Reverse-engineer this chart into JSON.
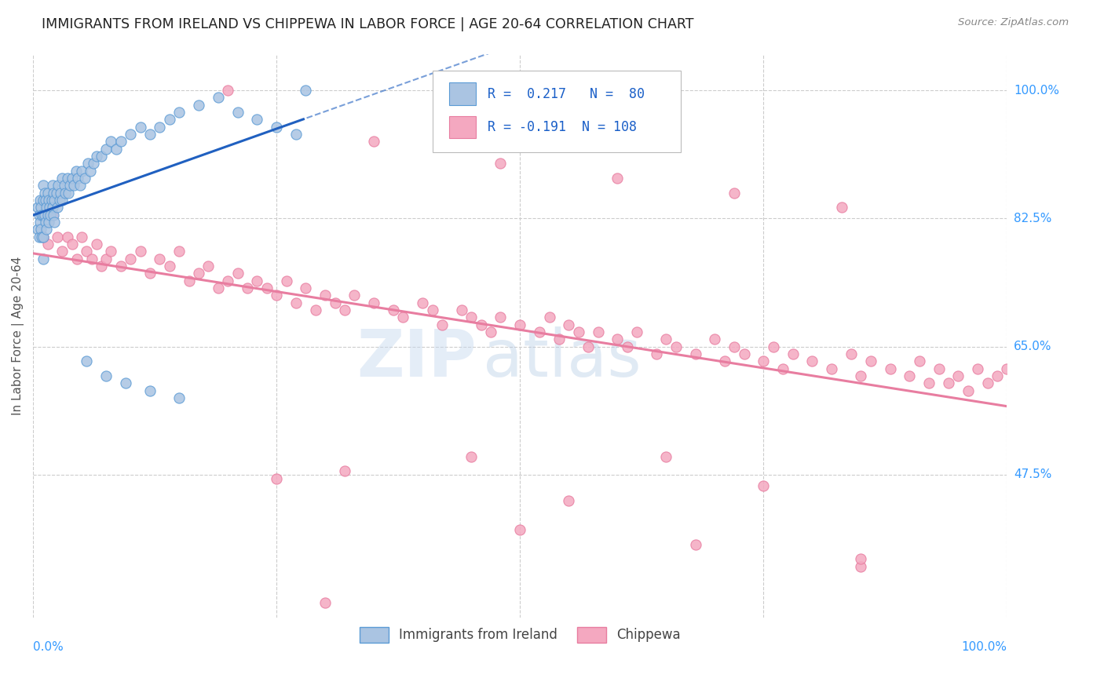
{
  "title": "IMMIGRANTS FROM IRELAND VS CHIPPEWA IN LABOR FORCE | AGE 20-64 CORRELATION CHART",
  "source": "Source: ZipAtlas.com",
  "ylabel": "In Labor Force | Age 20-64",
  "y_tick_labels": [
    "100.0%",
    "82.5%",
    "65.0%",
    "47.5%"
  ],
  "y_tick_positions": [
    1.0,
    0.825,
    0.65,
    0.475
  ],
  "x_lim": [
    0.0,
    1.0
  ],
  "y_lim": [
    0.28,
    1.05
  ],
  "ireland_color": "#aac4e2",
  "ireland_edge_color": "#5b9bd5",
  "chippewa_color": "#f4a8c0",
  "chippewa_edge_color": "#e87da0",
  "ireland_line_color": "#2060c0",
  "chippewa_line_color": "#e87da0",
  "ireland_R": 0.217,
  "ireland_N": 80,
  "chippewa_R": -0.191,
  "chippewa_N": 108,
  "background_color": "#ffffff",
  "grid_color": "#cccccc",
  "ireland_scatter_x": [
    0.005,
    0.005,
    0.006,
    0.006,
    0.007,
    0.007,
    0.008,
    0.008,
    0.009,
    0.009,
    0.01,
    0.01,
    0.01,
    0.01,
    0.01,
    0.012,
    0.012,
    0.013,
    0.013,
    0.014,
    0.014,
    0.015,
    0.015,
    0.016,
    0.016,
    0.017,
    0.018,
    0.019,
    0.02,
    0.02,
    0.021,
    0.021,
    0.022,
    0.022,
    0.024,
    0.025,
    0.026,
    0.027,
    0.028,
    0.03,
    0.03,
    0.032,
    0.033,
    0.035,
    0.036,
    0.038,
    0.04,
    0.042,
    0.044,
    0.046,
    0.048,
    0.05,
    0.053,
    0.056,
    0.059,
    0.062,
    0.065,
    0.07,
    0.075,
    0.08,
    0.085,
    0.09,
    0.1,
    0.11,
    0.12,
    0.13,
    0.14,
    0.15,
    0.17,
    0.19,
    0.21,
    0.23,
    0.25,
    0.27,
    0.055,
    0.075,
    0.095,
    0.12,
    0.15,
    0.28
  ],
  "ireland_scatter_y": [
    0.84,
    0.81,
    0.83,
    0.8,
    0.85,
    0.82,
    0.84,
    0.81,
    0.83,
    0.8,
    0.87,
    0.85,
    0.83,
    0.8,
    0.77,
    0.86,
    0.83,
    0.85,
    0.82,
    0.84,
    0.81,
    0.86,
    0.83,
    0.85,
    0.82,
    0.84,
    0.83,
    0.85,
    0.87,
    0.84,
    0.86,
    0.83,
    0.85,
    0.82,
    0.86,
    0.84,
    0.87,
    0.85,
    0.86,
    0.88,
    0.85,
    0.87,
    0.86,
    0.88,
    0.86,
    0.87,
    0.88,
    0.87,
    0.89,
    0.88,
    0.87,
    0.89,
    0.88,
    0.9,
    0.89,
    0.9,
    0.91,
    0.91,
    0.92,
    0.93,
    0.92,
    0.93,
    0.94,
    0.95,
    0.94,
    0.95,
    0.96,
    0.97,
    0.98,
    0.99,
    0.97,
    0.96,
    0.95,
    0.94,
    0.63,
    0.61,
    0.6,
    0.59,
    0.58,
    1.0
  ],
  "chippewa_scatter_x": [
    0.01,
    0.015,
    0.02,
    0.025,
    0.03,
    0.035,
    0.04,
    0.045,
    0.05,
    0.055,
    0.06,
    0.065,
    0.07,
    0.075,
    0.08,
    0.09,
    0.1,
    0.11,
    0.12,
    0.13,
    0.14,
    0.15,
    0.16,
    0.17,
    0.18,
    0.19,
    0.2,
    0.21,
    0.22,
    0.23,
    0.24,
    0.25,
    0.26,
    0.27,
    0.28,
    0.29,
    0.3,
    0.31,
    0.32,
    0.33,
    0.35,
    0.37,
    0.38,
    0.4,
    0.41,
    0.42,
    0.44,
    0.45,
    0.46,
    0.47,
    0.48,
    0.5,
    0.52,
    0.53,
    0.54,
    0.55,
    0.56,
    0.57,
    0.58,
    0.6,
    0.61,
    0.62,
    0.64,
    0.65,
    0.66,
    0.68,
    0.7,
    0.71,
    0.72,
    0.73,
    0.75,
    0.76,
    0.77,
    0.78,
    0.8,
    0.82,
    0.84,
    0.85,
    0.86,
    0.88,
    0.9,
    0.91,
    0.92,
    0.93,
    0.94,
    0.95,
    0.96,
    0.97,
    0.98,
    0.99,
    1.0,
    0.25,
    0.32,
    0.45,
    0.55,
    0.65,
    0.75,
    0.85,
    0.2,
    0.35,
    0.48,
    0.6,
    0.72,
    0.83,
    0.5,
    0.68,
    0.85,
    0.3
  ],
  "chippewa_scatter_y": [
    0.8,
    0.79,
    0.83,
    0.8,
    0.78,
    0.8,
    0.79,
    0.77,
    0.8,
    0.78,
    0.77,
    0.79,
    0.76,
    0.77,
    0.78,
    0.76,
    0.77,
    0.78,
    0.75,
    0.77,
    0.76,
    0.78,
    0.74,
    0.75,
    0.76,
    0.73,
    0.74,
    0.75,
    0.73,
    0.74,
    0.73,
    0.72,
    0.74,
    0.71,
    0.73,
    0.7,
    0.72,
    0.71,
    0.7,
    0.72,
    0.71,
    0.7,
    0.69,
    0.71,
    0.7,
    0.68,
    0.7,
    0.69,
    0.68,
    0.67,
    0.69,
    0.68,
    0.67,
    0.69,
    0.66,
    0.68,
    0.67,
    0.65,
    0.67,
    0.66,
    0.65,
    0.67,
    0.64,
    0.66,
    0.65,
    0.64,
    0.66,
    0.63,
    0.65,
    0.64,
    0.63,
    0.65,
    0.62,
    0.64,
    0.63,
    0.62,
    0.64,
    0.61,
    0.63,
    0.62,
    0.61,
    0.63,
    0.6,
    0.62,
    0.6,
    0.61,
    0.59,
    0.62,
    0.6,
    0.61,
    0.62,
    0.47,
    0.48,
    0.5,
    0.44,
    0.5,
    0.46,
    0.35,
    1.0,
    0.93,
    0.9,
    0.88,
    0.86,
    0.84,
    0.4,
    0.38,
    0.36,
    0.3
  ]
}
